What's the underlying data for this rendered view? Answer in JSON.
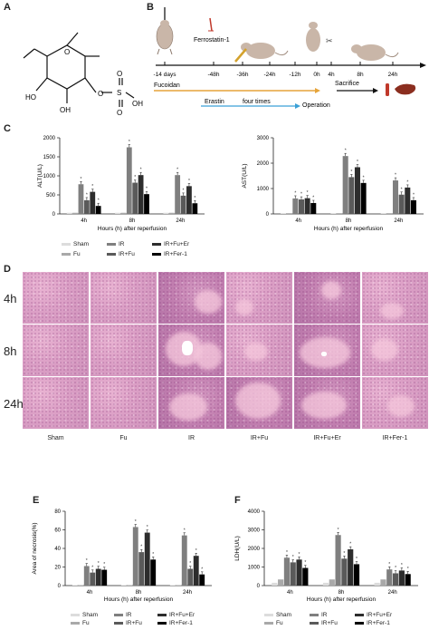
{
  "panels": {
    "A": "A",
    "B": "B",
    "C": "C",
    "D": "D",
    "E": "E",
    "F": "F"
  },
  "panel_a": {
    "labels": [
      "O",
      "O",
      "O",
      "S",
      "O",
      "OH",
      "HO",
      "OH"
    ]
  },
  "panel_b": {
    "ferrostatin": "Ferrostatin-1",
    "ticks": [
      "-14 days",
      "-48h",
      "-36h",
      "-24h",
      "-12h",
      "0h",
      "4h",
      "8h",
      "24h"
    ],
    "fucoidan": "Fucoidan",
    "sacrifice": "Sacrifice",
    "erastin": "Erastin",
    "four_times": "four times",
    "operation": "Operation"
  },
  "legend_groups": [
    "Sham",
    "IR",
    "IR+Fu+Er",
    "Fu",
    "IR+Fu",
    "IR+Fer-1"
  ],
  "colors": {
    "Sham": "#dcdcdc",
    "Fu": "#a9a9a9",
    "IR": "#7f7f7f",
    "IR+Fu": "#5a5a5a",
    "IR+Fu+Er": "#2d2d2d",
    "IR+Fer-1": "#000000"
  },
  "panel_d": {
    "rows": [
      "4h",
      "8h",
      "24h"
    ],
    "cols": [
      "Sham",
      "Fu",
      "IR",
      "IR+Fu",
      "IR+Fu+Er",
      "IR+Fer-1"
    ]
  },
  "chart_data": [
    {
      "id": "C-ALT",
      "type": "bar",
      "ylabel": "ALT(U/L)",
      "xlabel": "Hours (h) after reperfusion",
      "categories": [
        "4h",
        "8h",
        "24h"
      ],
      "ylim": [
        0,
        2000
      ],
      "yticks": [
        0,
        500,
        1000,
        1500,
        2000
      ],
      "series": [
        {
          "name": "Sham",
          "values": [
            30,
            30,
            30
          ]
        },
        {
          "name": "Fu",
          "values": [
            30,
            30,
            30
          ]
        },
        {
          "name": "IR",
          "values": [
            780,
            1750,
            1020
          ]
        },
        {
          "name": "IR+Fu",
          "values": [
            360,
            820,
            480
          ]
        },
        {
          "name": "IR+Fu+Er",
          "values": [
            580,
            1020,
            730
          ]
        },
        {
          "name": "IR+Fer-1",
          "values": [
            210,
            520,
            280
          ]
        }
      ]
    },
    {
      "id": "C-AST",
      "type": "bar",
      "ylabel": "AST(U/L)",
      "xlabel": "Hours (h) after reperfusion",
      "categories": [
        "4h",
        "8h",
        "24h"
      ],
      "ylim": [
        0,
        3000
      ],
      "yticks": [
        0,
        1000,
        2000,
        3000
      ],
      "series": [
        {
          "name": "Sham",
          "values": [
            30,
            30,
            30
          ]
        },
        {
          "name": "Fu",
          "values": [
            30,
            30,
            30
          ]
        },
        {
          "name": "IR",
          "values": [
            610,
            2280,
            1320
          ]
        },
        {
          "name": "IR+Fu",
          "values": [
            570,
            1450,
            760
          ]
        },
        {
          "name": "IR+Fu+Er",
          "values": [
            620,
            1840,
            1040
          ]
        },
        {
          "name": "IR+Fer-1",
          "values": [
            430,
            1220,
            540
          ]
        }
      ]
    },
    {
      "id": "E-necrosis",
      "type": "bar",
      "ylabel": "Area of necrosis(%)",
      "xlabel": "Hours (h) after reperfusion",
      "categories": [
        "4h",
        "8h",
        "24h"
      ],
      "ylim": [
        0,
        80
      ],
      "yticks": [
        0,
        20,
        40,
        60,
        80
      ],
      "series": [
        {
          "name": "Sham",
          "values": [
            0.5,
            0.5,
            0.5
          ]
        },
        {
          "name": "Fu",
          "values": [
            0.5,
            0.5,
            0.5
          ]
        },
        {
          "name": "IR",
          "values": [
            21,
            63,
            54
          ]
        },
        {
          "name": "IR+Fu",
          "values": [
            14,
            36,
            18
          ]
        },
        {
          "name": "IR+Fu+Er",
          "values": [
            18,
            57,
            32
          ]
        },
        {
          "name": "IR+Fer-1",
          "values": [
            17,
            28,
            12
          ]
        }
      ]
    },
    {
      "id": "F-LDH",
      "type": "bar",
      "ylabel": "LDH(U/L)",
      "xlabel": "Hours (h) after reperfusion",
      "categories": [
        "4h",
        "8h",
        "24h"
      ],
      "ylim": [
        0,
        4000
      ],
      "yticks": [
        0,
        1000,
        2000,
        3000,
        4000
      ],
      "series": [
        {
          "name": "Sham",
          "values": [
            150,
            150,
            150
          ]
        },
        {
          "name": "Fu",
          "values": [
            330,
            330,
            330
          ]
        },
        {
          "name": "IR",
          "values": [
            1500,
            2720,
            870
          ]
        },
        {
          "name": "IR+Fu",
          "values": [
            1250,
            1450,
            660
          ]
        },
        {
          "name": "IR+Fu+Er",
          "values": [
            1400,
            1950,
            810
          ]
        },
        {
          "name": "IR+Fer-1",
          "values": [
            950,
            1150,
            620
          ]
        }
      ]
    }
  ]
}
